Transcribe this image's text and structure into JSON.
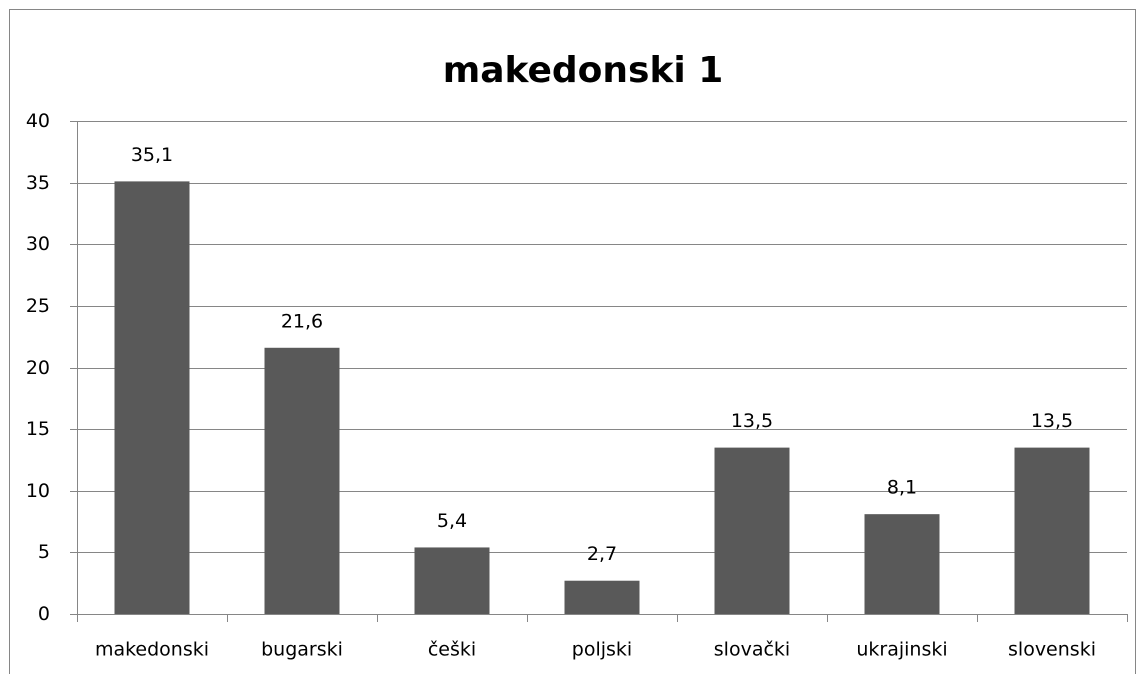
{
  "chart_data": {
    "type": "bar",
    "title": "makedonski 1",
    "categories": [
      "makedonski",
      "bugarski",
      "češki",
      "poljski",
      "slovački",
      "ukrajinski",
      "slovenski"
    ],
    "values": [
      35.1,
      21.6,
      5.4,
      2.7,
      13.5,
      8.1,
      13.5
    ],
    "value_labels": [
      "35,1",
      "21,6",
      "5,4",
      "2,7",
      "13,5",
      "8,1",
      "13,5"
    ],
    "color": "#595959",
    "ylim": [
      0,
      40
    ],
    "yticks": [
      0,
      5,
      10,
      15,
      20,
      25,
      30,
      35,
      40
    ],
    "grid": true
  }
}
